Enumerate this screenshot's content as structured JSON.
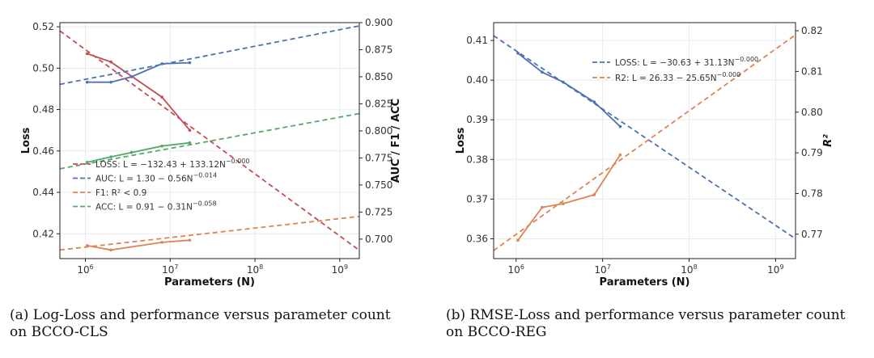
{
  "captions": {
    "a_line1": "(a) Log-Loss and performance versus parameter count",
    "a_line2": "on BCCO-CLS",
    "b_line1": "(b) RMSE-Loss and performance versus parameter count",
    "b_line2": "on BCCO-REG"
  },
  "chart_data": [
    {
      "type": "line",
      "x_scale": "log",
      "xlabel": "Parameters (N)",
      "ylabel_left": "Loss",
      "ylabel_right": "AUC / F1 / ACC",
      "xlim": [
        500000,
        1700000000
      ],
      "ylim_left": [
        0.408,
        0.522
      ],
      "ylim_right": [
        0.682,
        0.9
      ],
      "x_ticks": [
        1000000,
        10000000,
        100000000,
        1000000000
      ],
      "x_tick_labels": [
        "10^6",
        "10^7",
        "10^8",
        "10^9"
      ],
      "y_ticks_left": [
        0.42,
        0.44,
        0.46,
        0.48,
        0.5,
        0.52
      ],
      "y_tick_labels_left": [
        "0.42",
        "0.44",
        "0.46",
        "0.48",
        "0.50",
        "0.52"
      ],
      "y_ticks_right": [
        0.7,
        0.725,
        0.75,
        0.775,
        0.8,
        0.825,
        0.85,
        0.875,
        0.9
      ],
      "y_tick_labels_right": [
        "0.700",
        "0.725",
        "0.750",
        "0.775",
        "0.800",
        "0.825",
        "0.850",
        "0.875",
        "0.900"
      ],
      "grid": true,
      "legend_position": "lower-left",
      "legend": [
        {
          "text": "LOSS: L = −132.43 + 133.12N^−0.000",
          "color": "#c44e52"
        },
        {
          "text": "AUC: L = 1.30 − 0.56N^−0.014",
          "color": "#4c72b0"
        },
        {
          "text": "F1: R² < 0.9",
          "color": "#dd8452"
        },
        {
          "text": "ACC: L = 0.91 − 0.31N^−0.058",
          "color": "#55a868"
        }
      ],
      "series": [
        {
          "name": "LOSS",
          "axis": "left",
          "color": "#c44e52",
          "x": [
            1050000,
            2000000,
            8000000,
            17000000
          ],
          "y": [
            0.507,
            0.503,
            0.486,
            0.47
          ],
          "fit_x": [
            500000,
            1700000000
          ],
          "fit_y": [
            0.518,
            0.412
          ]
        },
        {
          "name": "AUC",
          "axis": "right",
          "color": "#4c72b0",
          "x": [
            1050000,
            2000000,
            3500000,
            8000000,
            17000000
          ],
          "y": [
            0.845,
            0.845,
            0.85,
            0.862,
            0.863
          ],
          "fit_x": [
            500000,
            1700000000
          ],
          "fit_y": [
            0.843,
            0.897
          ]
        },
        {
          "name": "F1",
          "axis": "right",
          "color": "#dd8452",
          "x": [
            1050000,
            2000000,
            8000000,
            17000000
          ],
          "y": [
            0.694,
            0.69,
            0.697,
            0.699
          ],
          "fit_x": [
            500000,
            1700000000
          ],
          "fit_y": [
            0.69,
            0.721
          ]
        },
        {
          "name": "ACC",
          "axis": "right",
          "color": "#55a868",
          "x": [
            1050000,
            2000000,
            3500000,
            8000000,
            17000000
          ],
          "y": [
            0.771,
            0.776,
            0.78,
            0.786,
            0.789
          ],
          "fit_x": [
            500000,
            1700000000
          ],
          "fit_y": [
            0.765,
            0.816
          ]
        }
      ]
    },
    {
      "type": "line",
      "x_scale": "log",
      "xlabel": "Parameters (N)",
      "ylabel_left": "Loss",
      "ylabel_right": "R²",
      "xlim": [
        550000,
        1700000000
      ],
      "ylim_left": [
        0.355,
        0.4145
      ],
      "ylim_right": [
        0.764,
        0.822
      ],
      "x_ticks": [
        1000000,
        10000000,
        100000000,
        1000000000
      ],
      "x_tick_labels": [
        "10^6",
        "10^7",
        "10^8",
        "10^9"
      ],
      "y_ticks_left": [
        0.36,
        0.37,
        0.38,
        0.39,
        0.4,
        0.41
      ],
      "y_tick_labels_left": [
        "0.36",
        "0.37",
        "0.38",
        "0.39",
        "0.40",
        "0.41"
      ],
      "y_ticks_right": [
        0.77,
        0.78,
        0.79,
        0.8,
        0.81,
        0.82
      ],
      "y_tick_labels_right": [
        "0.77",
        "0.78",
        "0.79",
        "0.80",
        "0.81",
        "0.82"
      ],
      "grid": true,
      "legend_position": "upper-center",
      "legend": [
        {
          "text": "LOSS: L = −30.63 + 31.13N^−0.000",
          "color": "#4c72b0"
        },
        {
          "text": "R2: L = 26.33 − 25.65N^−0.000",
          "color": "#dd8452"
        }
      ],
      "series": [
        {
          "name": "LOSS",
          "axis": "left",
          "color": "#4c72b0",
          "x": [
            1050000,
            2000000,
            3500000,
            8000000,
            16000000
          ],
          "y": [
            0.4068,
            0.402,
            0.3995,
            0.3945,
            0.3883
          ],
          "fit_x": [
            550000,
            1700000000
          ],
          "fit_y": [
            0.4112,
            0.36
          ]
        },
        {
          "name": "R2",
          "axis": "right",
          "color": "#dd8452",
          "x": [
            1050000,
            2000000,
            3500000,
            8000000,
            16000000
          ],
          "y": [
            0.7685,
            0.7766,
            0.7775,
            0.7797,
            0.7895
          ],
          "fit_x": [
            550000,
            1700000000
          ],
          "fit_y": [
            0.766,
            0.819
          ]
        }
      ]
    }
  ]
}
